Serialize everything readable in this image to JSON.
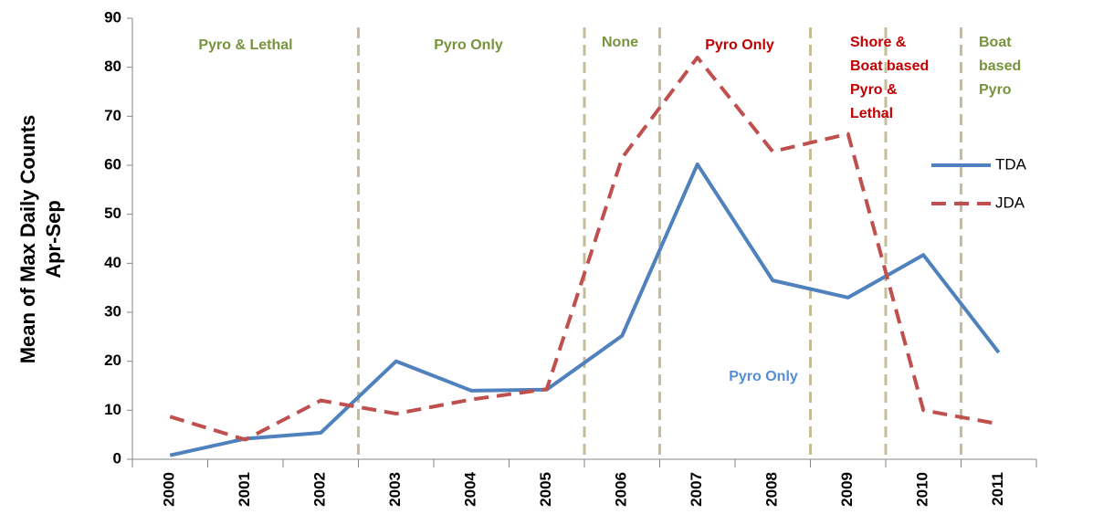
{
  "chart_data": {
    "type": "line",
    "y_label": [
      "Mean of Max Daily Counts",
      "Apr-Sep"
    ],
    "categories": [
      "2000",
      "2001",
      "2002",
      "2003",
      "2004",
      "2005",
      "2006",
      "2007",
      "2008",
      "2009",
      "2010",
      "2011"
    ],
    "series": [
      {
        "name": "TDA",
        "color": "#4f81bd",
        "dashed": false,
        "values": [
          0.8,
          4.2,
          5.4,
          20,
          14,
          14.2,
          25.2,
          60.2,
          36.5,
          33,
          41.7,
          21.8
        ]
      },
      {
        "name": "JDA",
        "color": "#c0504d",
        "dashed": true,
        "values": [
          8.7,
          4,
          12,
          9.3,
          12.2,
          14.3,
          61.5,
          82,
          62.8,
          66.4,
          10,
          7.2
        ]
      }
    ],
    "ylim": [
      0,
      90
    ],
    "yticks": [
      0,
      10,
      20,
      30,
      40,
      50,
      60,
      70,
      80,
      90
    ],
    "legend": "right",
    "annotations": [
      {
        "lines": [
          "Pyro & Lethal"
        ],
        "color": "#77933c"
      },
      {
        "lines": [
          "Pyro  Only"
        ],
        "color": "#77933c"
      },
      {
        "lines": [
          "None"
        ],
        "color": "#77933c"
      },
      {
        "lines": [
          "Pyro Only"
        ],
        "color": "#c00000"
      },
      {
        "lines": [
          "Shore &",
          "Boat based",
          "Pyro &",
          "Lethal"
        ],
        "color": "#c00000"
      },
      {
        "lines": [
          "Boat",
          "based",
          "Pyro"
        ],
        "color": "#77933c"
      },
      {
        "lines": [
          "Pyro Only"
        ],
        "color": "#558ed5"
      }
    ]
  }
}
